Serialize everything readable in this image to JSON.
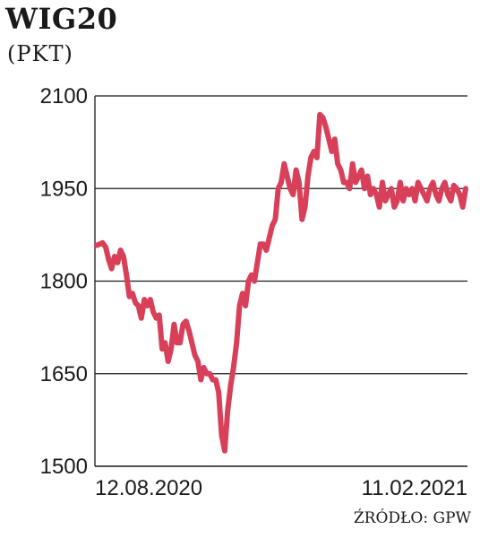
{
  "header": {
    "title": "WIG20",
    "subtitle": "(PKT)"
  },
  "source": "ŹRÓDŁO: GPW",
  "colors": {
    "line": "#d8405a",
    "grid": "#1a1a1a"
  },
  "chart_data": {
    "type": "line",
    "title": "WIG20",
    "ylabel": "(PKT)",
    "ylim": [
      1500,
      2100
    ],
    "yticks": [
      1500,
      1650,
      1800,
      1950,
      2100
    ],
    "grid": true,
    "xtick_labels": [
      {
        "x": 0,
        "label": "12.08.2020"
      },
      {
        "x": 124,
        "label": "11.02.2021"
      }
    ],
    "x": [
      0,
      1,
      2,
      3,
      4,
      5,
      6,
      7,
      8,
      9,
      10,
      11,
      12,
      13,
      14,
      15,
      16,
      17,
      18,
      19,
      20,
      21,
      22,
      23,
      24,
      25,
      26,
      27,
      28,
      29,
      30,
      31,
      32,
      33,
      34,
      35,
      36,
      37,
      38,
      39,
      40,
      41,
      42,
      43,
      44,
      45,
      46,
      47,
      48,
      49,
      50,
      51,
      52,
      53,
      54,
      55,
      56,
      57,
      58,
      59,
      60,
      61,
      62,
      63,
      64,
      65,
      66,
      67,
      68,
      69,
      70,
      71,
      72,
      73,
      74,
      75,
      76,
      77,
      78,
      79,
      80,
      81,
      82,
      83,
      84,
      85,
      86,
      87,
      88,
      89,
      90,
      91,
      92,
      93,
      94,
      95,
      96,
      97,
      98,
      99,
      100,
      101,
      102,
      103,
      104,
      105,
      106,
      107,
      108,
      109,
      110,
      111,
      112,
      113,
      114,
      115,
      116,
      117,
      118,
      119,
      120,
      121,
      122,
      123,
      124
    ],
    "values": [
      1858,
      1860,
      1862,
      1855,
      1835,
      1820,
      1840,
      1830,
      1850,
      1840,
      1810,
      1775,
      1780,
      1765,
      1760,
      1740,
      1770,
      1760,
      1770,
      1750,
      1740,
      1745,
      1690,
      1700,
      1670,
      1690,
      1730,
      1700,
      1700,
      1730,
      1735,
      1720,
      1700,
      1680,
      1670,
      1640,
      1660,
      1650,
      1650,
      1640,
      1640,
      1620,
      1550,
      1525,
      1590,
      1630,
      1660,
      1700,
      1760,
      1780,
      1760,
      1800,
      1810,
      1800,
      1830,
      1860,
      1860,
      1850,
      1870,
      1890,
      1900,
      1950,
      1960,
      1990,
      1970,
      1950,
      1940,
      1980,
      1960,
      1900,
      1920,
      1970,
      2000,
      2010,
      2000,
      2070,
      2065,
      2050,
      2030,
      2010,
      2030,
      1990,
      1980,
      1960,
      1960,
      1950,
      1990,
      1960,
      1970,
      1980,
      1950,
      1970,
      1940,
      1950,
      1940,
      1920,
      1960,
      1930,
      1940,
      1950,
      1920,
      1930,
      1960,
      1930,
      1950,
      1940,
      1950,
      1930,
      1960,
      1950,
      1940,
      1930,
      1950,
      1960,
      1940,
      1930,
      1950,
      1960,
      1940,
      1930,
      1955,
      1950,
      1940,
      1920,
      1950
    ]
  }
}
